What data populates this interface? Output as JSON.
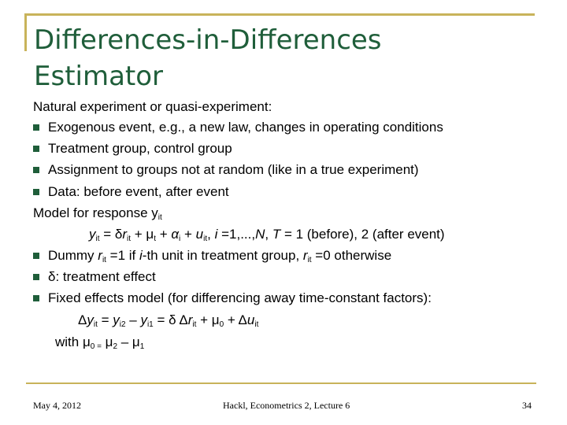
{
  "title": {
    "line1": "Differences-in-Differences",
    "line2": "Estimator"
  },
  "body": {
    "intro": "Natural experiment or quasi-experiment:",
    "bullets_a": [
      "Exogenous event, e.g., a new law, changes in operating conditions",
      "Treatment group, control group",
      "Assignment to groups not at random (like in a true experiment)",
      "Data: before event, after event"
    ],
    "model_intro": "Model for response y",
    "bullets_b": [
      "δ: treatment effect",
      "Fixed effects model (for differencing away time-constant factors):"
    ]
  },
  "footer": {
    "date": "May 4, 2012",
    "center": "Hackl, Econometrics 2, Lecture 6",
    "page": "34"
  },
  "colors": {
    "accent": "#c8b35a",
    "title": "#1f5e3a",
    "bullet": "#1f5e3a"
  }
}
